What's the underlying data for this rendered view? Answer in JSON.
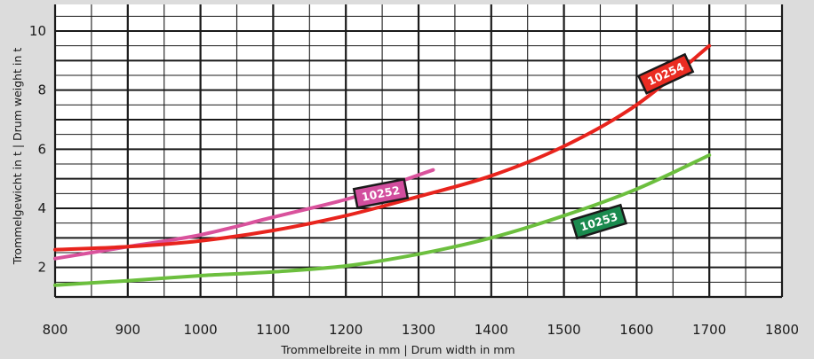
{
  "chart_data": {
    "type": "line",
    "xlabel": "Trommelbreite in mm | Drum width in mm",
    "ylabel": "Trommelgewicht in t | Drum weight in t",
    "xlim": [
      800,
      1800
    ],
    "ylim": [
      1,
      10.9
    ],
    "x_ticks": [
      800,
      900,
      1000,
      1100,
      1200,
      1300,
      1400,
      1500,
      1600,
      1700,
      1800
    ],
    "y_ticks": [
      2,
      4,
      6,
      8,
      10
    ],
    "series": [
      {
        "name": "10252",
        "color": "#d9529c",
        "tag_color": "#d24e9e",
        "label_at": [
          1248,
          4.5
        ],
        "label_angle": -11,
        "x": [
          800,
          900,
          1000,
          1100,
          1200,
          1250,
          1320
        ],
        "y": [
          2.3,
          2.7,
          3.1,
          3.7,
          4.3,
          4.7,
          5.3
        ]
      },
      {
        "name": "10253",
        "color": "#6cbf3e",
        "tag_color": "#1a8a4e",
        "label_at": [
          1548,
          3.55
        ],
        "label_angle": -17,
        "x": [
          800,
          900,
          1000,
          1100,
          1200,
          1300,
          1400,
          1500,
          1600,
          1700
        ],
        "y": [
          1.4,
          1.55,
          1.72,
          1.85,
          2.05,
          2.45,
          3.0,
          3.75,
          4.65,
          5.8
        ]
      },
      {
        "name": "10254",
        "color": "#e8241d",
        "tag_color": "#ea2c22",
        "label_at": [
          1640,
          8.55
        ],
        "label_angle": -25,
        "x": [
          800,
          900,
          1000,
          1100,
          1200,
          1300,
          1400,
          1500,
          1600,
          1700
        ],
        "y": [
          2.6,
          2.7,
          2.9,
          3.25,
          3.75,
          4.4,
          5.1,
          6.1,
          7.5,
          9.5
        ]
      }
    ],
    "grid": true,
    "legend": "none"
  }
}
